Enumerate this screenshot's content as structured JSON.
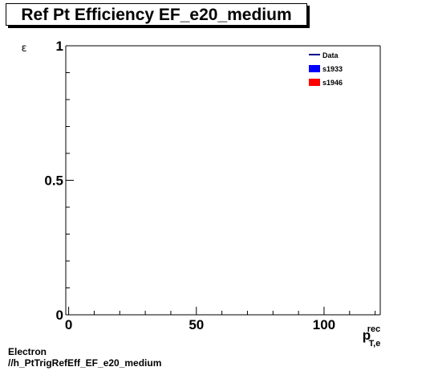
{
  "chart_data": {
    "type": "scatter",
    "title": "Ref Pt Efficiency EF_e20_medium",
    "ylabel": "ε",
    "xlabel": {
      "main": "p",
      "sup": "rec",
      "sub": "T,e"
    },
    "xlim": [
      0,
      122
    ],
    "ylim": [
      0,
      1
    ],
    "x_ticks": [
      0,
      50,
      100
    ],
    "y_ticks": [
      0,
      0.5,
      1
    ],
    "x_tick_labels": [
      "0",
      "50",
      "100"
    ],
    "y_tick_labels": [
      "0",
      "0.5",
      "1"
    ],
    "grid": false,
    "legend_position": "top-right",
    "series": [
      {
        "name": "Data",
        "style": "line",
        "color": "#00008b",
        "points": []
      },
      {
        "name": "s1933",
        "style": "box",
        "color": "#0000ff",
        "points": []
      },
      {
        "name": "s1946",
        "style": "box",
        "color": "#ff0000",
        "points": []
      }
    ]
  },
  "footer": {
    "line1": "Electron",
    "line2": "//h_PtTrigRefEff_EF_e20_medium"
  }
}
